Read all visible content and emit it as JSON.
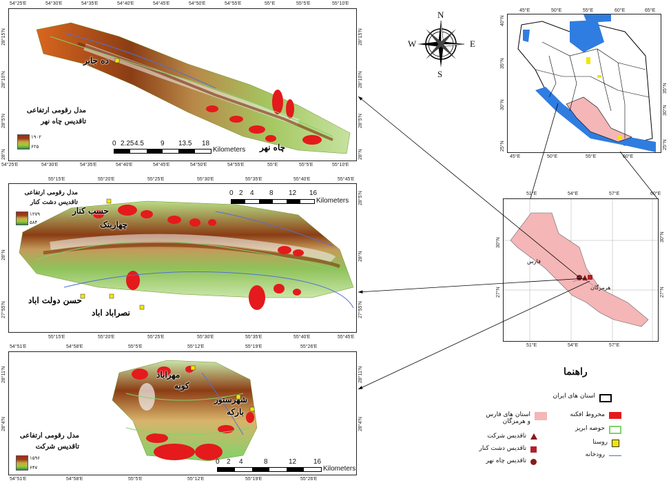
{
  "compass": {
    "n": "N",
    "s": "S",
    "e": "E",
    "w": "W"
  },
  "panel1": {
    "top_ticks": [
      "54°25'E",
      "54°30'E",
      "54°35'E",
      "54°40'E",
      "54°45'E",
      "54°50'E",
      "54°55'E",
      "55°E",
      "55°5'E",
      "55°10'E"
    ],
    "bottom_ticks": [
      "54°25'E",
      "54°30'E",
      "54°35'E",
      "54°40'E",
      "54°45'E",
      "54°50'E",
      "54°55'E",
      "55°E",
      "55°5'E",
      "55°10'E"
    ],
    "left_ticks": [
      "28°15'N",
      "28°10'N",
      "28°5'N",
      "28°N"
    ],
    "right_ticks": [
      "28°15'N",
      "28°10'N",
      "28°5'N",
      "28°N"
    ],
    "legend_title_1": "مدل رقومی ارتفاعی",
    "legend_title_2": "تاقدیس چاه نهر",
    "max": "۱۹۰۲",
    "min": "۶۲۵",
    "scale": [
      "0",
      "2.25",
      "4.5",
      "9",
      "13.5",
      "18"
    ],
    "scale_unit": "Kilometers",
    "places": [
      "ده جابر",
      "چاه نهر"
    ]
  },
  "panel2": {
    "top_ticks": [
      "55°15'E",
      "55°20'E",
      "55°25'E",
      "55°30'E",
      "55°35'E",
      "55°40'E",
      "55°45'E"
    ],
    "bottom_ticks": [
      "55°15'E",
      "55°20'E",
      "55°25'E",
      "55°30'E",
      "55°35'E",
      "55°40'E",
      "55°45'E"
    ],
    "left_ticks": [
      "28°N",
      "27°55'N"
    ],
    "right_ticks": [
      "28°5'N",
      "28°N",
      "27°55'N"
    ],
    "legend_title_1": "مدل رقومی ارتفاعی",
    "legend_title_2": "تاقدیس دشت کنار",
    "max": "۱۲۷۹",
    "min": "۵۸۴",
    "scale": [
      "0",
      "2",
      "4",
      "8",
      "12",
      "16"
    ],
    "scale_unit": "Kilometers",
    "places": [
      "حسب کنار",
      "چهاربنک",
      "حسن دولت اباد",
      "نصراباد اباد"
    ]
  },
  "panel3": {
    "top_ticks": [
      "54°51'E",
      "54°58'E",
      "55°5'E",
      "55°12'E",
      "55°19'E",
      "55°26'E"
    ],
    "bottom_ticks": [
      "54°51'E",
      "54°58'E",
      "55°5'E",
      "55°12'E",
      "55°19'E",
      "55°26'E"
    ],
    "left_ticks": [
      "28°11'N",
      "28°4'N"
    ],
    "right_ticks": [
      "28°11'N",
      "28°4'N"
    ],
    "legend_title_1": "مدل رقومی ارتفاعی",
    "legend_title_2": "تاقدیس شرکت",
    "max": "۱۵۹۶",
    "min": "۶۴۷",
    "scale": [
      "0",
      "2",
      "4",
      "8",
      "12",
      "16"
    ],
    "scale_unit": "Kilometers",
    "places": [
      "مهراباد",
      "کونه",
      "شهرستور",
      "بارکه"
    ]
  },
  "iran_map": {
    "top_ticks": [
      "45°E",
      "50°E",
      "55°E",
      "60°E",
      "65°E"
    ],
    "bottom_ticks": [
      "45°E",
      "50°E",
      "55°E",
      "60°E"
    ],
    "left_ticks": [
      "40°N",
      "35°N",
      "30°N",
      "25°N"
    ],
    "right_ticks": [
      "35°N",
      "30°N",
      "25°N"
    ]
  },
  "province_map": {
    "top_ticks": [
      "51°E",
      "54°E",
      "57°E",
      "60°E"
    ],
    "bottom_ticks": [
      "51°E",
      "54°E",
      "57°E"
    ],
    "left_ticks": [
      "30°N",
      "27°N"
    ],
    "right_ticks": [
      "30°N",
      "27°N"
    ],
    "label_fars": "فارس",
    "label_hormozgan": "هرمزگان"
  },
  "legend": {
    "title": "راهنما",
    "items": {
      "iran_provinces": "استان های ایران",
      "fars_hormozgan": "استان های فارس و هرمزگان",
      "alluvial_fan": "مخروط افکنه",
      "basin": "حوضه ابریز",
      "village": "روستا",
      "river": "رودخانه",
      "sherkat": "تاقدیس شرکت",
      "dasht_kenar": "تاقدیس دشت کنار",
      "chah_nahr": "تاقدیس چاه نهر"
    },
    "colors": {
      "red": "#e41a1c",
      "pink": "#f4b6b6",
      "green": "#7fd36b",
      "yellow": "#f2e600",
      "blue": "#4f6fd6",
      "maroon": "#8b1a1a"
    }
  }
}
